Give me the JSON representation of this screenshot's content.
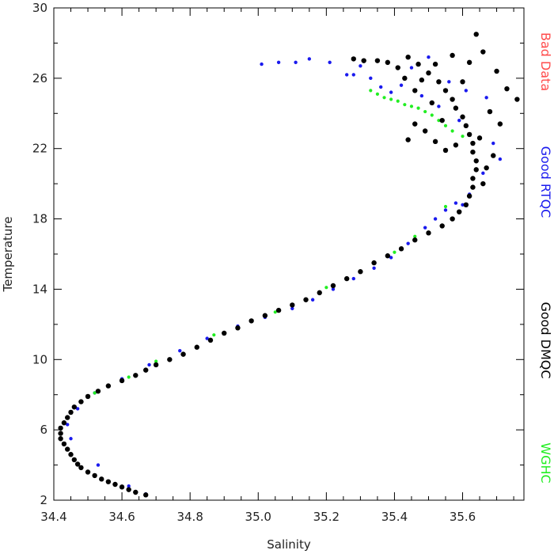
{
  "chart_data": {
    "type": "scatter",
    "xlabel": "Salinity",
    "ylabel": "Temperature",
    "xlim": [
      34.4,
      35.78
    ],
    "ylim": [
      2,
      30
    ],
    "xticks": [
      34.4,
      34.6,
      34.8,
      35.0,
      35.2,
      35.4,
      35.6
    ],
    "xtick_labels": [
      "34.4",
      "34.6",
      "34.8",
      "35.0",
      "35.2",
      "35.4",
      "35.6"
    ],
    "yticks": [
      2,
      6,
      10,
      14,
      18,
      22,
      26,
      30
    ],
    "ytick_labels": [
      "2",
      "6",
      "10",
      "14",
      "18",
      "22",
      "26",
      "30"
    ],
    "grid": false,
    "legend_position": "right-side-vertical",
    "series": [
      {
        "name": "Bad Data",
        "color": "#ff4b4b",
        "points": []
      },
      {
        "name": "Good RTQC",
        "color": "#1a1aee",
        "points": [
          [
            35.01,
            26.8
          ],
          [
            35.06,
            26.9
          ],
          [
            35.11,
            26.9
          ],
          [
            35.15,
            27.1
          ],
          [
            35.21,
            26.9
          ],
          [
            35.26,
            26.2
          ],
          [
            35.28,
            26.2
          ],
          [
            35.3,
            26.7
          ],
          [
            35.33,
            26.0
          ],
          [
            35.36,
            25.5
          ],
          [
            35.39,
            25.2
          ],
          [
            35.42,
            25.6
          ],
          [
            35.45,
            26.6
          ],
          [
            35.48,
            25.0
          ],
          [
            35.5,
            27.2
          ],
          [
            35.53,
            24.4
          ],
          [
            35.56,
            25.8
          ],
          [
            35.59,
            23.6
          ],
          [
            35.61,
            25.3
          ],
          [
            35.63,
            21.8
          ],
          [
            35.66,
            20.6
          ],
          [
            35.69,
            22.3
          ],
          [
            35.71,
            21.4
          ],
          [
            35.67,
            24.9
          ],
          [
            35.62,
            19.4
          ],
          [
            35.6,
            18.8
          ],
          [
            35.58,
            18.9
          ],
          [
            35.55,
            18.5
          ],
          [
            35.52,
            18.0
          ],
          [
            35.49,
            17.5
          ],
          [
            35.44,
            16.6
          ],
          [
            35.39,
            15.8
          ],
          [
            35.34,
            15.2
          ],
          [
            35.28,
            14.6
          ],
          [
            35.22,
            14.0
          ],
          [
            35.16,
            13.4
          ],
          [
            35.1,
            12.9
          ],
          [
            35.02,
            12.4
          ],
          [
            34.94,
            11.9
          ],
          [
            34.85,
            11.2
          ],
          [
            34.77,
            10.5
          ],
          [
            34.68,
            9.7
          ],
          [
            34.6,
            8.9
          ],
          [
            34.52,
            8.1
          ],
          [
            34.47,
            7.2
          ],
          [
            34.44,
            6.3
          ],
          [
            34.45,
            5.5
          ],
          [
            34.53,
            4.0
          ],
          [
            34.62,
            2.8
          ],
          [
            34.67,
            2.35
          ]
        ]
      },
      {
        "name": "Good DMQC",
        "color": "#000000",
        "points": [
          [
            34.67,
            2.3
          ],
          [
            34.64,
            2.45
          ],
          [
            34.62,
            2.6
          ],
          [
            34.6,
            2.75
          ],
          [
            34.58,
            2.9
          ],
          [
            34.56,
            3.05
          ],
          [
            34.54,
            3.2
          ],
          [
            34.52,
            3.4
          ],
          [
            34.5,
            3.6
          ],
          [
            34.48,
            3.85
          ],
          [
            34.47,
            4.05
          ],
          [
            34.46,
            4.3
          ],
          [
            34.45,
            4.6
          ],
          [
            34.44,
            4.9
          ],
          [
            34.43,
            5.2
          ],
          [
            34.42,
            5.5
          ],
          [
            34.42,
            5.8
          ],
          [
            34.42,
            6.1
          ],
          [
            34.43,
            6.4
          ],
          [
            34.44,
            6.7
          ],
          [
            34.45,
            7.0
          ],
          [
            34.46,
            7.3
          ],
          [
            34.48,
            7.6
          ],
          [
            34.5,
            7.9
          ],
          [
            34.53,
            8.2
          ],
          [
            34.56,
            8.5
          ],
          [
            34.6,
            8.8
          ],
          [
            34.64,
            9.1
          ],
          [
            34.67,
            9.4
          ],
          [
            34.7,
            9.7
          ],
          [
            34.74,
            10.0
          ],
          [
            34.78,
            10.3
          ],
          [
            34.82,
            10.7
          ],
          [
            34.86,
            11.1
          ],
          [
            34.9,
            11.5
          ],
          [
            34.94,
            11.8
          ],
          [
            34.98,
            12.2
          ],
          [
            35.02,
            12.5
          ],
          [
            35.06,
            12.8
          ],
          [
            35.1,
            13.1
          ],
          [
            35.14,
            13.4
          ],
          [
            35.18,
            13.8
          ],
          [
            35.22,
            14.2
          ],
          [
            35.26,
            14.6
          ],
          [
            35.3,
            15.0
          ],
          [
            35.34,
            15.5
          ],
          [
            35.38,
            15.9
          ],
          [
            35.42,
            16.3
          ],
          [
            35.46,
            16.8
          ],
          [
            35.5,
            17.2
          ],
          [
            35.54,
            17.6
          ],
          [
            35.57,
            18.0
          ],
          [
            35.59,
            18.4
          ],
          [
            35.61,
            18.8
          ],
          [
            35.62,
            19.3
          ],
          [
            35.63,
            19.8
          ],
          [
            35.63,
            20.3
          ],
          [
            35.64,
            20.8
          ],
          [
            35.64,
            21.3
          ],
          [
            35.63,
            21.8
          ],
          [
            35.63,
            22.3
          ],
          [
            35.62,
            22.8
          ],
          [
            35.61,
            23.3
          ],
          [
            35.6,
            23.8
          ],
          [
            35.58,
            24.3
          ],
          [
            35.57,
            24.8
          ],
          [
            35.55,
            25.3
          ],
          [
            35.53,
            25.8
          ],
          [
            35.5,
            26.3
          ],
          [
            35.47,
            26.8
          ],
          [
            35.44,
            27.2
          ],
          [
            35.41,
            26.6
          ],
          [
            35.38,
            26.9
          ],
          [
            35.35,
            27.0
          ],
          [
            35.31,
            27.0
          ],
          [
            35.28,
            27.1
          ],
          [
            35.66,
            27.5
          ],
          [
            35.64,
            28.5
          ],
          [
            35.7,
            26.4
          ],
          [
            35.73,
            25.4
          ],
          [
            35.76,
            24.8
          ],
          [
            35.68,
            24.1
          ],
          [
            35.71,
            23.4
          ],
          [
            35.65,
            22.6
          ],
          [
            35.69,
            21.6
          ],
          [
            35.67,
            20.9
          ],
          [
            35.66,
            20.0
          ],
          [
            35.58,
            22.2
          ],
          [
            35.55,
            21.9
          ],
          [
            35.52,
            22.4
          ],
          [
            35.49,
            23.0
          ],
          [
            35.46,
            23.4
          ],
          [
            35.44,
            22.5
          ],
          [
            35.43,
            26.0
          ],
          [
            35.46,
            25.3
          ],
          [
            35.51,
            24.6
          ],
          [
            35.54,
            23.6
          ],
          [
            35.6,
            25.8
          ],
          [
            35.62,
            26.9
          ],
          [
            35.57,
            27.3
          ],
          [
            35.52,
            26.8
          ],
          [
            35.48,
            25.9
          ]
        ]
      },
      {
        "name": "WGHC",
        "color": "#22ee22",
        "points": [
          [
            35.33,
            25.3
          ],
          [
            35.35,
            25.1
          ],
          [
            35.37,
            24.9
          ],
          [
            35.39,
            24.8
          ],
          [
            35.41,
            24.7
          ],
          [
            35.43,
            24.5
          ],
          [
            35.45,
            24.4
          ],
          [
            35.47,
            24.3
          ],
          [
            35.49,
            24.1
          ],
          [
            35.51,
            23.9
          ],
          [
            35.53,
            23.6
          ],
          [
            35.55,
            23.3
          ],
          [
            35.57,
            23.0
          ],
          [
            35.6,
            22.7
          ],
          [
            35.55,
            18.7
          ],
          [
            35.46,
            17.0
          ],
          [
            35.4,
            16.1
          ],
          [
            35.3,
            15.0
          ],
          [
            35.2,
            14.1
          ],
          [
            35.05,
            12.7
          ],
          [
            34.87,
            11.4
          ],
          [
            34.7,
            9.9
          ],
          [
            34.62,
            9.0
          ],
          [
            34.52,
            8.1
          ]
        ]
      }
    ]
  }
}
